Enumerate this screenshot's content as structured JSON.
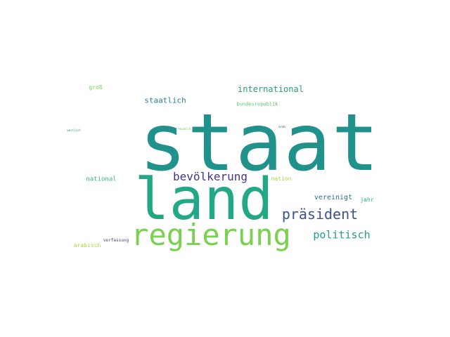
{
  "words": {
    "staat": {
      "text": "staat",
      "color": "#21918c"
    },
    "land": {
      "text": "land",
      "color": "#22a884"
    },
    "regierung": {
      "text": "regierung",
      "color": "#7ad151"
    },
    "praesident": {
      "text": "präsident",
      "color": "#3b528b"
    },
    "bevoelkerung": {
      "text": "bevölkerung",
      "color": "#453781"
    },
    "politisch": {
      "text": "politisch",
      "color": "#1f9e89"
    },
    "international": {
      "text": "international",
      "color": "#2a9d7f"
    },
    "staatlich": {
      "text": "staatlich",
      "color": "#26828e"
    },
    "vereinigt": {
      "text": "vereinigt",
      "color": "#2c728e"
    },
    "national": {
      "text": "national",
      "color": "#35b779"
    },
    "nation": {
      "text": "nation",
      "color": "#a0da39"
    },
    "jahr": {
      "text": "jahr",
      "color": "#2db27d"
    },
    "arabisch": {
      "text": "arabisch",
      "color": "#a5db36"
    },
    "gross": {
      "text": "groß",
      "color": "#7ad151"
    },
    "bundesrepublik": {
      "text": "bundesrepublik",
      "color": "#5ec962"
    },
    "verfassung": {
      "text": "verfassung",
      "color": "#414487"
    },
    "westlich": {
      "text": "westlich",
      "color": "#1f9e89"
    },
    "republik": {
      "text": "republik",
      "color": "#6ece58"
    },
    "arab": {
      "text": "arab",
      "color": "#3b528b"
    }
  }
}
